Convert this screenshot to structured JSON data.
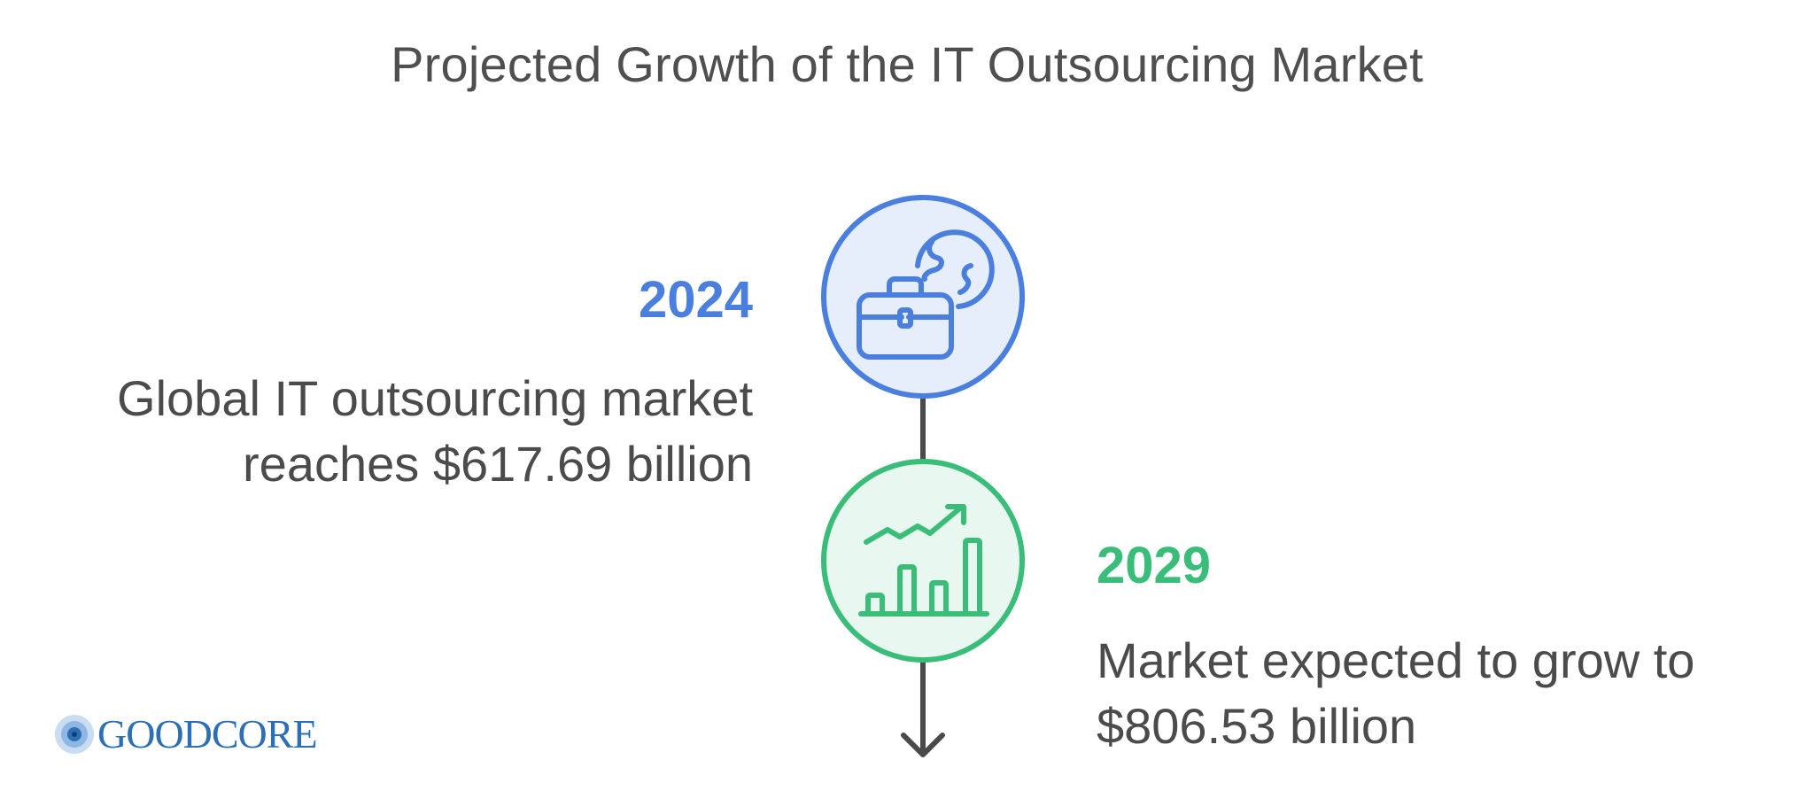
{
  "title": "Projected Growth of the IT Outsourcing Market",
  "colors": {
    "blue": "#4a7fde",
    "blue_fill": "#e6eefc",
    "green": "#3bbd7a",
    "green_fill": "#e8f7ef",
    "line": "#4a4a4a",
    "logo": "#2c6fb5"
  },
  "milestones": [
    {
      "year": "2024",
      "description_line1": "Global IT outsourcing market",
      "description_line2": "reaches $617.69 billion",
      "icon": "briefcase-globe-icon"
    },
    {
      "year": "2029",
      "description_line1": "Market expected to grow to",
      "description_line2": "$806.53 billion",
      "icon": "growth-chart-icon"
    }
  ],
  "logo": {
    "text": "GOODCORE",
    "icon": "target-rings-icon"
  }
}
